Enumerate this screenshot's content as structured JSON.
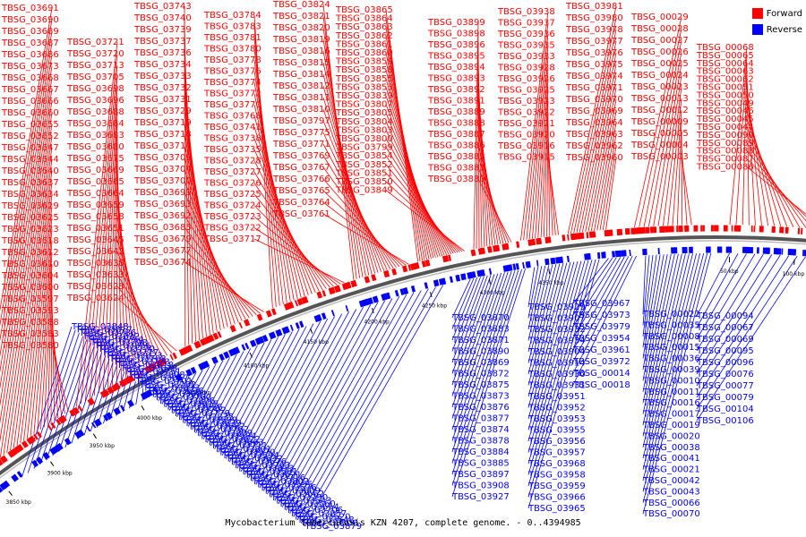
{
  "caption": "Mycobacterium tuberculosis KZN 4207, complete genome. - 0..4394985",
  "legend": [
    {
      "label": "Forward",
      "color": "#ff0000"
    },
    {
      "label": "Reverse",
      "color": "#0000ff"
    }
  ],
  "colors": {
    "forward": "#ff0000",
    "reverse": "#0000ff",
    "backbone": "#555555"
  },
  "ticks": [
    "3850 kbp",
    "3900 kbp",
    "3950 kbp",
    "4000 kbp",
    "4050 kbp",
    "4100 kbp",
    "4150 kbp",
    "4200 kbp",
    "4250 kbp",
    "4300 kbp",
    "4350 kbp",
    "50 kbp",
    "100 kbp"
  ],
  "forward_labels": [
    "TBSG_03691",
    "TBSG_03690",
    "TBSG_03689",
    "TBSG_03687",
    "TBSG_03686",
    "TBSG_03673",
    "TBSG_03668",
    "TBSG_03667",
    "TBSG_03666",
    "TBSG_03660",
    "TBSG_03655",
    "TBSG_03652",
    "TBSG_03647",
    "TBSG_03644",
    "TBSG_03640",
    "TBSG_03637",
    "TBSG_03634",
    "TBSG_03629",
    "TBSG_03625",
    "TBSG_03623",
    "TBSG_03618",
    "TBSG_03612",
    "TBSG_03610",
    "TBSG_03604",
    "TBSG_03600",
    "TBSG_03597",
    "TBSG_03593",
    "TBSG_03588",
    "TBSG_03583",
    "TBSG_03580",
    "TBSG_03721",
    "TBSG_03720",
    "TBSG_03713",
    "TBSG_03705",
    "TBSG_03698",
    "TBSG_03696",
    "TBSG_03688",
    "TBSG_03684",
    "TBSG_03683",
    "TBSG_03680",
    "TBSG_03675",
    "TBSG_03669",
    "TBSG_03665",
    "TBSG_03664",
    "TBSG_03659",
    "TBSG_03658",
    "TBSG_03651",
    "TBSG_03645",
    "TBSG_03642",
    "TBSG_03638",
    "TBSG_03633",
    "TBSG_03628",
    "TBSG_03624",
    "TBSG_03743",
    "TBSG_03740",
    "TBSG_03739",
    "TBSG_03737",
    "TBSG_03736",
    "TBSG_03734",
    "TBSG_03733",
    "TBSG_03732",
    "TBSG_03731",
    "TBSG_03729",
    "TBSG_03719",
    "TBSG_03718",
    "TBSG_03714",
    "TBSG_03709",
    "TBSG_03704",
    "TBSG_03700",
    "TBSG_03699",
    "TBSG_03693",
    "TBSG_03692",
    "TBSG_03685",
    "TBSG_03679",
    "TBSG_03677",
    "TBSG_03674",
    "TBSG_03784",
    "TBSG_03783",
    "TBSG_03781",
    "TBSG_03780",
    "TBSG_03778",
    "TBSG_03776",
    "TBSG_03774",
    "TBSG_03772",
    "TBSG_03770",
    "TBSG_03768",
    "TBSG_03741",
    "TBSG_03738",
    "TBSG_03735",
    "TBSG_03728",
    "TBSG_03727",
    "TBSG_03726",
    "TBSG_03725",
    "TBSG_03724",
    "TBSG_03723",
    "TBSG_03722",
    "TBSG_03717",
    "TBSG_03824",
    "TBSG_03821",
    "TBSG_03820",
    "TBSG_03819",
    "TBSG_03816",
    "TBSG_03815",
    "TBSG_03814",
    "TBSG_03812",
    "TBSG_03811",
    "TBSG_03810",
    "TBSG_03797",
    "TBSG_03775",
    "TBSG_03771",
    "TBSG_03769",
    "TBSG_03767",
    "TBSG_03766",
    "TBSG_03765",
    "TBSG_03764",
    "TBSG_03761",
    "TBSG_03865",
    "TBSG_03864",
    "TBSG_03863",
    "TBSG_03862",
    "TBSG_03861",
    "TBSG_03860",
    "TBSG_03859",
    "TBSG_03858",
    "TBSG_03855",
    "TBSG_03853",
    "TBSG_03839",
    "TBSG_03807",
    "TBSG_03805",
    "TBSG_03804",
    "TBSG_03803",
    "TBSG_03800",
    "TBSG_03799",
    "TBSG_03854",
    "TBSG_03852",
    "TBSG_03851",
    "TBSG_03850",
    "TBSG_03849",
    "TBSG_03899",
    "TBSG_03898",
    "TBSG_03896",
    "TBSG_03895",
    "TBSG_03894",
    "TBSG_03893",
    "TBSG_03892",
    "TBSG_03891",
    "TBSG_03889",
    "TBSG_03888",
    "TBSG_03887",
    "TBSG_03886",
    "TBSG_03882",
    "TBSG_03881",
    "TBSG_03880",
    "TBSG_03938",
    "TBSG_03937",
    "TBSG_03936",
    "TBSG_03935",
    "TBSG_03933",
    "TBSG_03928",
    "TBSG_03926",
    "TBSG_03925",
    "TBSG_03923",
    "TBSG_03922",
    "TBSG_03921",
    "TBSG_03920",
    "TBSG_03916",
    "TBSG_03915",
    "TBSG_03981",
    "TBSG_03980",
    "TBSG_03978",
    "TBSG_03977",
    "TBSG_03976",
    "TBSG_03975",
    "TBSG_03974",
    "TBSG_03971",
    "TBSG_03970",
    "TBSG_03969",
    "TBSG_03964",
    "TBSG_03963",
    "TBSG_03962",
    "TBSG_03960",
    "TBSG_00029",
    "TBSG_00028",
    "TBSG_00027",
    "TBSG_00026",
    "TBSG_00025",
    "TBSG_00024",
    "TBSG_00023",
    "TBSG_00013",
    "TBSG_00012",
    "TBSG_00009",
    "TBSG_00005",
    "TBSG_00004",
    "TBSG_00003",
    "TBSG_00068",
    "TBSG_00065",
    "TBSG_00064",
    "TBSG_00063",
    "TBSG_00062",
    "TBSG_00051",
    "TBSG_00050",
    "TBSG_00049",
    "TBSG_00046",
    "TBSG_00045",
    "TBSG_00044",
    "TBSG_00090",
    "TBSG_00089",
    "TBSG_00088",
    "TBSG_00087",
    "TBSG_00086",
    "TBSG_00085"
  ],
  "reverse_labels": [
    "TBSG_03848",
    "TBSG_03817",
    "TBSG_03786",
    "TBSG_03832",
    "TBSG_03754",
    "TBSG_03798",
    "TBSG_03856",
    "TBSG_03730",
    "TBSG_03777",
    "TBSG_03823",
    "TBSG_03703",
    "TBSG_03773",
    "TBSG_03818",
    "TBSG_03678",
    "TBSG_03751",
    "TBSG_03808",
    "TBSG_03657",
    "TBSG_03701",
    "TBSG_03782",
    "TBSG_03833",
    "TBSG_03636",
    "TBSG_03681",
    "TBSG_03760",
    "TBSG_03806",
    "TBSG_03615",
    "TBSG_03656",
    "TBSG_03702",
    "TBSG_03779",
    "TBSG_03835",
    "TBSG_03599",
    "TBSG_03639",
    "TBSG_03682",
    "TBSG_03762",
    "TBSG_03809",
    "TBSG_03584",
    "TBSG_03622",
    "TBSG_03663",
    "TBSG_03711",
    "TBSG_03801",
    "TBSG_03570",
    "TBSG_03594",
    "TBSG_03632",
    "TBSG_03676",
    "TBSG_03763",
    "TBSG_03813",
    "TBSG_03581",
    "TBSG_03621",
    "TBSG_03716",
    "TBSG_03802",
    "TBSG_03555",
    "TBSG_03576",
    "TBSG_03609",
    "TBSG_03662",
    "TBSG_03790",
    "TBSG_03543",
    "TBSG_03560",
    "TBSG_03654",
    "TBSG_03706",
    "TBSG_03857",
    "TBSG_03520",
    "TBSG_03548",
    "TBSG_03506",
    "TBSG_03879",
    "TBSG_03870",
    "TBSG_03883",
    "TBSG_03871",
    "TBSG_03890",
    "TBSG_03869",
    "TBSG_03872",
    "TBSG_03875",
    "TBSG_03873",
    "TBSG_03876",
    "TBSG_03877",
    "TBSG_03874",
    "TBSG_03878",
    "TBSG_03884",
    "TBSG_03885",
    "TBSG_03897",
    "TBSG_03908",
    "TBSG_03927",
    "TBSG_03929",
    "TBSG_03907",
    "TBSG_03932",
    "TBSG_03934",
    "TBSG_03904",
    "TBSG_03914",
    "TBSG_03930",
    "TBSG_03931",
    "TBSG_03951",
    "TBSG_03952",
    "TBSG_03953",
    "TBSG_03955",
    "TBSG_03956",
    "TBSG_03957",
    "TBSG_03968",
    "TBSG_03958",
    "TBSG_03959",
    "TBSG_03966",
    "TBSG_03965",
    "TBSG_03967",
    "TBSG_03973",
    "TBSG_03979",
    "TBSG_03954",
    "TBSG_03961",
    "TBSG_03972",
    "TBSG_00014",
    "TBSG_00018",
    "TBSG_00022",
    "TBSG_00035",
    "TBSG_00008",
    "TBSG_00015",
    "TBSG_00036",
    "TBSG_00039",
    "TBSG_00010",
    "TBSG_00011",
    "TBSG_00016",
    "TBSG_00017",
    "TBSG_00019",
    "TBSG_00020",
    "TBSG_00038",
    "TBSG_00041",
    "TBSG_00021",
    "TBSG_00042",
    "TBSG_00043",
    "TBSG_00066",
    "TBSG_00070",
    "TBSG_00094",
    "TBSG_00067",
    "TBSG_00069",
    "TBSG_00095",
    "TBSG_00096",
    "TBSG_00076",
    "TBSG_00077",
    "TBSG_00079",
    "TBSG_00104",
    "TBSG_00106"
  ]
}
